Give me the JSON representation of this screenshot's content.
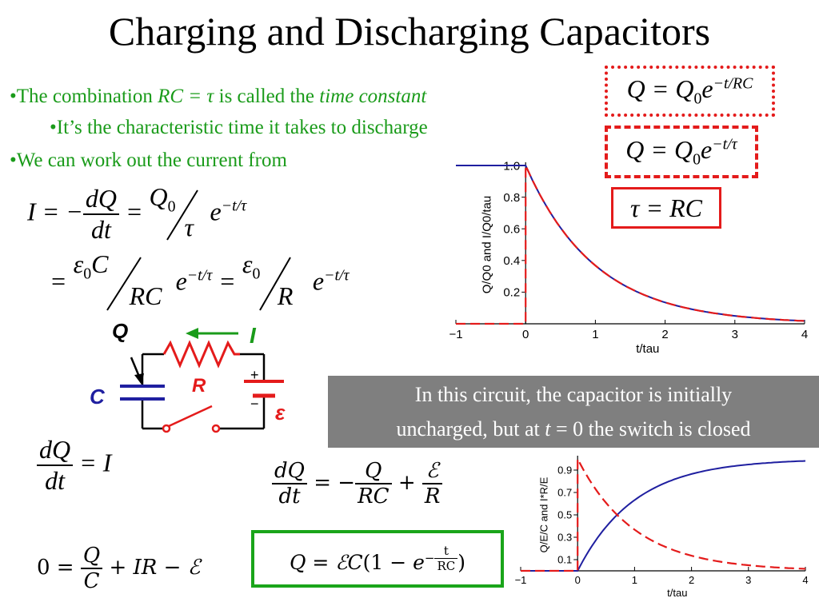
{
  "title": "Charging and Discharging Capacitors",
  "bullets": {
    "b1_pre": "•The combination ",
    "b1_mid": "RC = τ",
    "b1_post": " is called the ",
    "b1_em": "time constant",
    "b2": "•It’s the characteristic time it takes to discharge",
    "b3": "•We can work out the current from"
  },
  "boxes": {
    "q_rc": "Q = Q₀e^(−t/RC)",
    "q_tau": "Q = Q₀e^(−t/τ)",
    "tau_rc": "τ = RC"
  },
  "circuit": {
    "label_Q": "Q",
    "label_I": "I",
    "label_C": "C",
    "label_R": "R",
    "label_emf": "ε",
    "label_plus": "+",
    "label_minus": "−"
  },
  "note": {
    "line1": "In this circuit, the capacitor is initially",
    "line2_pre": "uncharged, but at ",
    "line2_t": "t",
    "line2_post": " = 0 the switch is closed"
  },
  "equations": {
    "dqdt_i": "dQ/dt = I",
    "loop": "0 = Q/C + IR − ℰ",
    "dqdt_full": "dQ/dt = −Q/RC + ℰ/R",
    "charge": "Q = ℰC(1 − e^(−t/RC))"
  },
  "colors": {
    "bullet_green": "#1a9b1a",
    "red": "#e41b1b",
    "blue": "#1f1fa0",
    "green_box": "#1aa51a",
    "note_gray": "#7f7f7f"
  },
  "chart_data": [
    {
      "type": "line",
      "title": "",
      "xlabel": "t/tau",
      "ylabel": "Q/Q0 and I/Q0/tau",
      "xlim": [
        -1,
        4
      ],
      "ylim": [
        0,
        1.0
      ],
      "xticks": [
        "−1",
        "0",
        "1",
        "2",
        "3",
        "4"
      ],
      "yticks": [
        "0.2",
        "0.4",
        "0.6",
        "0.8",
        "1.0"
      ],
      "x": [
        -1,
        0,
        0.5,
        1,
        1.5,
        2,
        2.5,
        3,
        3.5,
        4
      ],
      "series": [
        {
          "color": "#1f1fa0",
          "style": "solid",
          "values": [
            1,
            1,
            0.607,
            0.368,
            0.223,
            0.135,
            0.082,
            0.05,
            0.03,
            0.018
          ]
        },
        {
          "color": "#e41b1b",
          "style": "dashed",
          "values": [
            0,
            1,
            0.607,
            0.368,
            0.223,
            0.135,
            0.082,
            0.05,
            0.03,
            0.018
          ]
        }
      ]
    },
    {
      "type": "line",
      "title": "",
      "xlabel": "t/tau",
      "ylabel": "Q/E/C and I*R/E",
      "xlim": [
        -1,
        4
      ],
      "ylim": [
        0,
        1.0
      ],
      "xticks": [
        "−1",
        "0",
        "1",
        "2",
        "3",
        "4"
      ],
      "yticks": [
        "0.1",
        "0.3",
        "0.5",
        "0.7",
        "0.9"
      ],
      "x": [
        -1,
        0,
        0.5,
        1,
        1.5,
        2,
        2.5,
        3,
        3.5,
        4
      ],
      "series": [
        {
          "color": "#1f1fa0",
          "style": "solid",
          "values": [
            0,
            0,
            0.393,
            0.632,
            0.777,
            0.865,
            0.918,
            0.95,
            0.97,
            0.982
          ]
        },
        {
          "color": "#e41b1b",
          "style": "dashed",
          "values": [
            0,
            1,
            0.607,
            0.368,
            0.223,
            0.135,
            0.082,
            0.05,
            0.03,
            0.018
          ]
        }
      ]
    }
  ]
}
